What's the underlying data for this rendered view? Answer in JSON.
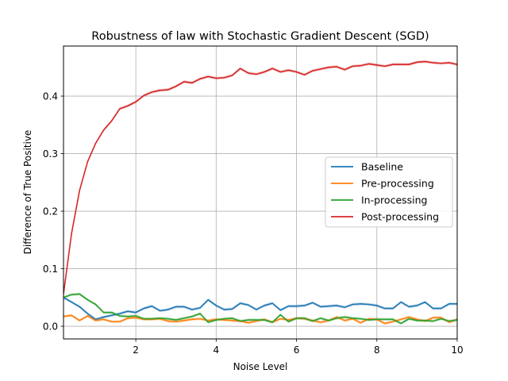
{
  "chart_data": {
    "type": "line",
    "title": "Robustness of law with Stochastic Gradient Descent (SGD)",
    "xlabel": "Noise Level",
    "ylabel": "Difference of True Positive",
    "xlim": [
      0.2,
      10
    ],
    "ylim": [
      -0.022,
      0.487
    ],
    "xticks": [
      2,
      4,
      6,
      8,
      10
    ],
    "yticks": [
      0.0,
      0.1,
      0.2,
      0.3,
      0.4
    ],
    "grid": true,
    "legend_position": "center-right",
    "x": [
      0.2,
      0.4,
      0.6,
      0.8,
      1.0,
      1.2,
      1.4,
      1.6,
      1.8,
      2.0,
      2.2,
      2.4,
      2.6,
      2.8,
      3.0,
      3.2,
      3.4,
      3.6,
      3.8,
      4.0,
      4.2,
      4.4,
      4.6,
      4.8,
      5.0,
      5.2,
      5.4,
      5.6,
      5.8,
      6.0,
      6.2,
      6.4,
      6.6,
      6.8,
      7.0,
      7.2,
      7.4,
      7.6,
      7.8,
      8.0,
      8.2,
      8.4,
      8.6,
      8.8,
      9.0,
      9.2,
      9.4,
      9.6,
      9.8,
      10.0
    ],
    "series": [
      {
        "name": "Baseline",
        "color": "#1f77b4",
        "values": [
          0.05,
          0.042,
          0.034,
          0.022,
          0.012,
          0.016,
          0.019,
          0.022,
          0.026,
          0.024,
          0.031,
          0.035,
          0.027,
          0.029,
          0.034,
          0.034,
          0.029,
          0.032,
          0.046,
          0.036,
          0.029,
          0.03,
          0.04,
          0.037,
          0.029,
          0.036,
          0.04,
          0.028,
          0.035,
          0.035,
          0.036,
          0.041,
          0.034,
          0.035,
          0.036,
          0.033,
          0.038,
          0.039,
          0.038,
          0.036,
          0.031,
          0.031,
          0.042,
          0.034,
          0.036,
          0.042,
          0.031,
          0.031,
          0.039,
          0.039
        ]
      },
      {
        "name": "Pre-processing",
        "color": "#ff7f0e",
        "values": [
          0.017,
          0.019,
          0.01,
          0.018,
          0.01,
          0.012,
          0.008,
          0.008,
          0.014,
          0.015,
          0.012,
          0.012,
          0.013,
          0.009,
          0.008,
          0.01,
          0.012,
          0.013,
          0.01,
          0.012,
          0.011,
          0.01,
          0.009,
          0.006,
          0.009,
          0.012,
          0.007,
          0.013,
          0.011,
          0.014,
          0.013,
          0.01,
          0.007,
          0.01,
          0.016,
          0.01,
          0.013,
          0.006,
          0.013,
          0.012,
          0.005,
          0.008,
          0.012,
          0.016,
          0.012,
          0.009,
          0.015,
          0.015,
          0.007,
          0.012
        ]
      },
      {
        "name": "In-processing",
        "color": "#2ca02c",
        "values": [
          0.05,
          0.055,
          0.056,
          0.046,
          0.038,
          0.024,
          0.024,
          0.018,
          0.017,
          0.018,
          0.013,
          0.013,
          0.014,
          0.013,
          0.011,
          0.014,
          0.017,
          0.022,
          0.007,
          0.011,
          0.013,
          0.014,
          0.009,
          0.011,
          0.011,
          0.011,
          0.007,
          0.02,
          0.008,
          0.014,
          0.014,
          0.009,
          0.014,
          0.01,
          0.014,
          0.016,
          0.014,
          0.013,
          0.011,
          0.012,
          0.012,
          0.012,
          0.005,
          0.013,
          0.01,
          0.01,
          0.009,
          0.013,
          0.009,
          0.011
        ]
      },
      {
        "name": "Post-processing",
        "color": "#d62728",
        "values": [
          0.056,
          0.161,
          0.236,
          0.286,
          0.318,
          0.341,
          0.357,
          0.378,
          0.383,
          0.39,
          0.401,
          0.407,
          0.41,
          0.411,
          0.417,
          0.425,
          0.423,
          0.43,
          0.434,
          0.431,
          0.432,
          0.436,
          0.448,
          0.44,
          0.438,
          0.442,
          0.448,
          0.442,
          0.445,
          0.442,
          0.437,
          0.444,
          0.447,
          0.45,
          0.451,
          0.446,
          0.452,
          0.453,
          0.456,
          0.454,
          0.452,
          0.455,
          0.455,
          0.455,
          0.459,
          0.46,
          0.458,
          0.457,
          0.458,
          0.455
        ]
      }
    ]
  }
}
